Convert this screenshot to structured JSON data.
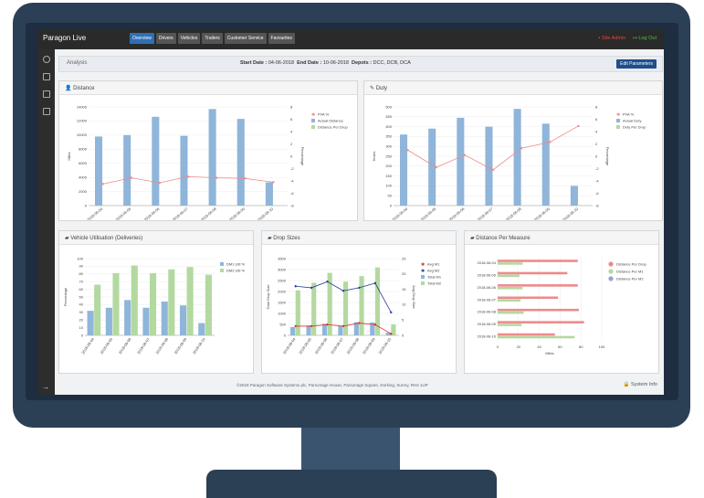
{
  "app": {
    "brand": "Paragon Live"
  },
  "nav": {
    "items": [
      "Overview",
      "Drivers",
      "Vehicles",
      "Trailers",
      "Customer Service",
      "Favourites"
    ]
  },
  "header": {
    "admin_label": "Site Admin",
    "logout_label": "Log Out"
  },
  "analysis": {
    "label": "Analysis",
    "start_label": "Start Date :",
    "start_value": "04-06-2018",
    "end_label": "End Date :",
    "end_value": "10-06-2018",
    "depots_label": "Depots :",
    "depots_value": "DCC, DCB, DCA",
    "edit_button": "Edit Parameters"
  },
  "footer": {
    "copyright": "©2018 Paragon Software Systems plc, Parsonage House, Parsonage Square, Dorking, Surrey, RH4 1UP",
    "system_info": "System Info"
  },
  "colors": {
    "blue": "#8fb5da",
    "green": "#b3d9a0",
    "pink": "#ee8a8a",
    "navy": "#283f96",
    "red": "#e03030",
    "accent": "#2f6fb5"
  },
  "panels": {
    "distance": {
      "title": "Distance"
    },
    "duty": {
      "title": "Duty"
    },
    "utilisation": {
      "title": "Vehicle Utilisation (Deliveries)"
    },
    "drops": {
      "title": "Drop Sizes"
    },
    "measure": {
      "title": "Distance Per Measure"
    }
  },
  "chart_data": [
    {
      "id": "distance",
      "type": "bar",
      "categories": [
        "2018-06-04",
        "2018-06-05",
        "2018-06-06",
        "2018-06-07",
        "2018-06-08",
        "2018-06-09",
        "2018-06-10"
      ],
      "ylabel": "Miles",
      "y2label": "Percentage",
      "ylim": [
        0,
        14000
      ],
      "yticks": [
        0,
        2000,
        4000,
        6000,
        8000,
        10000,
        12000,
        14000
      ],
      "y2lim": [
        -8,
        8
      ],
      "y2ticks": [
        -8,
        -6,
        -4,
        -2,
        0,
        2,
        4,
        6,
        8
      ],
      "series": [
        {
          "name": "PVA %",
          "kind": "line",
          "axis": "y2",
          "values": [
            -4.5,
            -3.5,
            -4.3,
            -3.3,
            -3.5,
            -3.6,
            -4.2
          ]
        },
        {
          "name": "Actual Distance",
          "kind": "bar",
          "values": [
            9800,
            10000,
            12600,
            9900,
            13700,
            12300,
            3300
          ]
        },
        {
          "name": "Distance Per Drop",
          "kind": "bar",
          "values": [
            0,
            0,
            0,
            0,
            0,
            0,
            0
          ]
        }
      ],
      "legend": "top-right"
    },
    {
      "id": "duty",
      "type": "bar",
      "categories": [
        "2018-06-04",
        "2018-06-05",
        "2018-06-06",
        "2018-06-07",
        "2018-06-08",
        "2018-06-09",
        "2018-06-10"
      ],
      "ylabel": "Hours",
      "y2label": "Percentage",
      "ylim": [
        0,
        500
      ],
      "yticks": [
        0,
        50,
        100,
        150,
        200,
        250,
        300,
        350,
        400,
        450,
        500
      ],
      "y2lim": [
        -8,
        8
      ],
      "y2ticks": [
        -8,
        -6,
        -4,
        -2,
        0,
        2,
        4,
        6,
        8
      ],
      "series": [
        {
          "name": "PVA %",
          "kind": "line",
          "axis": "y2",
          "values": [
            1.0,
            -1.8,
            0.2,
            -2.2,
            1.3,
            2.3,
            4.9
          ]
        },
        {
          "name": "Actual Duty",
          "kind": "bar",
          "values": [
            360,
            390,
            445,
            400,
            490,
            415,
            100
          ]
        },
        {
          "name": "Duty Per Drop",
          "kind": "bar",
          "values": [
            0,
            0,
            0,
            0,
            0,
            0,
            0
          ]
        }
      ],
      "legend": "top-right"
    },
    {
      "id": "utilisation",
      "type": "bar",
      "categories": [
        "2018-06-04",
        "2018-06-05",
        "2018-06-06",
        "2018-06-07",
        "2018-06-08",
        "2018-06-09",
        "2018-06-10"
      ],
      "ylabel": "Percentage",
      "ylim": [
        0,
        100
      ],
      "yticks": [
        0,
        10,
        20,
        30,
        40,
        50,
        60,
        70,
        80,
        90,
        100
      ],
      "series": [
        {
          "name": "DM1 Util %",
          "values": [
            32,
            36,
            46,
            36,
            44,
            39,
            16
          ]
        },
        {
          "name": "DM2 Util %",
          "values": [
            66,
            81,
            91,
            81,
            86,
            89,
            79
          ]
        }
      ],
      "legend": "top-right"
    },
    {
      "id": "drops",
      "type": "bar",
      "categories": [
        "2018-06-04",
        "2018-06-05",
        "2018-06-06",
        "2018-06-07",
        "2018-06-08",
        "2018-06-09",
        "2018-06-10"
      ],
      "ylabel": "Total Drop Size",
      "y2label": "Avg Drop Size",
      "ylim": [
        0,
        3500
      ],
      "yticks": [
        0,
        500,
        1000,
        1500,
        2000,
        2500,
        3000,
        3500
      ],
      "y2lim": [
        0,
        25
      ],
      "y2ticks": [
        0,
        5,
        10,
        15,
        20,
        25
      ],
      "series": [
        {
          "name": "Avg M1",
          "kind": "line",
          "axis": "y2",
          "values": [
            3,
            3,
            3.5,
            3,
            4,
            3.5,
            0.5
          ]
        },
        {
          "name": "Avg M2",
          "kind": "line",
          "axis": "y2",
          "values": [
            16,
            15.5,
            17.5,
            14.5,
            15.5,
            17,
            7.5
          ]
        },
        {
          "name": "Total M1",
          "kind": "bar",
          "values": [
            380,
            450,
            530,
            420,
            600,
            590,
            120
          ]
        },
        {
          "name": "Total M2",
          "kind": "bar",
          "values": [
            2050,
            2400,
            2850,
            2450,
            2700,
            3100,
            500
          ]
        }
      ],
      "legend": "top-right"
    },
    {
      "id": "measure",
      "type": "bar",
      "orientation": "horizontal",
      "categories": [
        "2018-06-04",
        "2018-06-05",
        "2018-06-06",
        "2018-06-07",
        "2018-06-08",
        "2018-06-09",
        "2018-06-10"
      ],
      "xlabel": "Miles",
      "xlim": [
        0,
        100
      ],
      "xticks": [
        0,
        20,
        40,
        60,
        80,
        100
      ],
      "series": [
        {
          "name": "Distance Per Drop",
          "values": [
            77,
            67,
            77,
            58,
            78,
            83,
            55
          ]
        },
        {
          "name": "Distance Per M1",
          "values": [
            24,
            21,
            24,
            22,
            25,
            23,
            74
          ]
        },
        {
          "name": "Distance Per M2",
          "values": [
            0,
            0,
            0,
            0,
            0,
            0,
            0
          ]
        }
      ],
      "legend": "top-right"
    }
  ]
}
